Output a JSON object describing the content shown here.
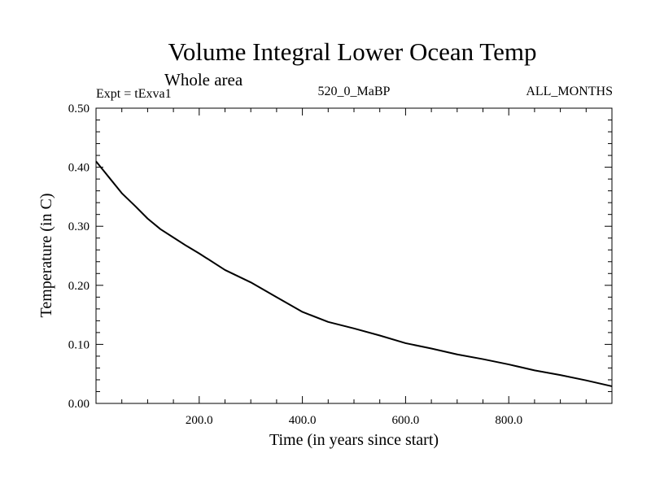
{
  "chart_data": {
    "type": "line",
    "title": "Volume Integral Lower Ocean Temp",
    "subtitle": "Whole area",
    "header_left": "Expt = tExva1",
    "header_center": "520_0_MaBP",
    "header_right": "ALL_MONTHS",
    "xlabel": "Time (in years since start)",
    "ylabel": "Temperature (in C)",
    "xlim": [
      0,
      1000
    ],
    "ylim": [
      0.0,
      0.5
    ],
    "x_ticks": [
      200,
      400,
      600,
      800
    ],
    "x_tick_labels": [
      "200.0",
      "400.0",
      "600.0",
      "800.0"
    ],
    "y_ticks": [
      0.0,
      0.1,
      0.2,
      0.3,
      0.4,
      0.5
    ],
    "y_tick_labels": [
      "0.00",
      "0.10",
      "0.20",
      "0.30",
      "0.40",
      "0.50"
    ],
    "grid": false,
    "series": [
      {
        "name": "Temperature",
        "color": "#000000",
        "x": [
          0,
          25,
          50,
          75,
          100,
          125,
          150,
          175,
          200,
          250,
          300,
          350,
          400,
          450,
          500,
          550,
          600,
          650,
          700,
          750,
          800,
          850,
          900,
          950,
          1000
        ],
        "values": [
          0.41,
          0.383,
          0.356,
          0.335,
          0.313,
          0.295,
          0.281,
          0.267,
          0.254,
          0.226,
          0.205,
          0.18,
          0.155,
          0.138,
          0.127,
          0.115,
          0.102,
          0.093,
          0.083,
          0.075,
          0.066,
          0.056,
          0.048,
          0.039,
          0.029
        ]
      }
    ]
  }
}
